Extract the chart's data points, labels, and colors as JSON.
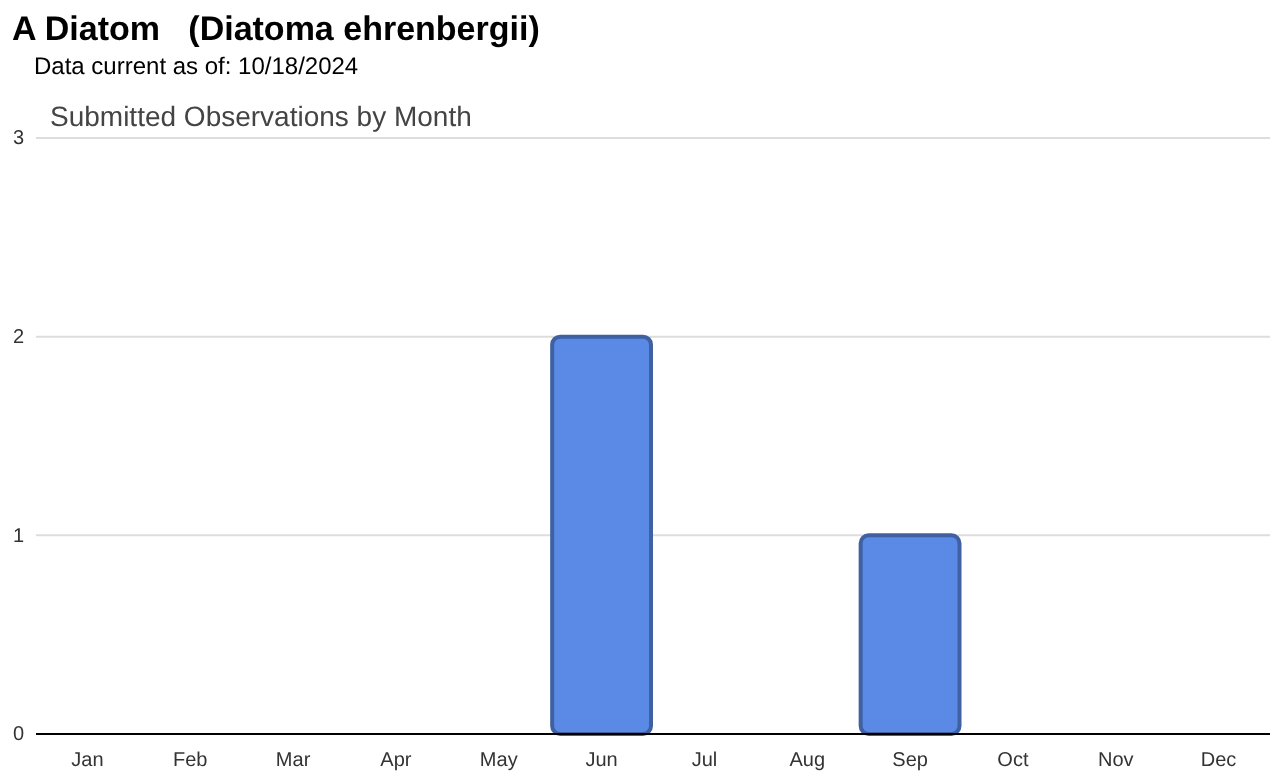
{
  "chart_data": {
    "type": "bar",
    "title": "A Diatom   (Diatoma ehrenbergii)",
    "subtitle": "Data current as of: 10/18/2024",
    "annotations": [
      "Submitted Observations by Month"
    ],
    "categories": [
      "Jan",
      "Feb",
      "Mar",
      "Apr",
      "May",
      "Jun",
      "Jul",
      "Aug",
      "Sep",
      "Oct",
      "Nov",
      "Dec"
    ],
    "values": [
      0,
      0,
      0,
      0,
      0,
      2,
      0,
      0,
      1,
      0,
      0,
      0
    ],
    "color": "#5a8ae6",
    "ylim": [
      0,
      3
    ],
    "yticks": [
      0,
      1,
      2,
      3
    ],
    "grid": "y"
  }
}
